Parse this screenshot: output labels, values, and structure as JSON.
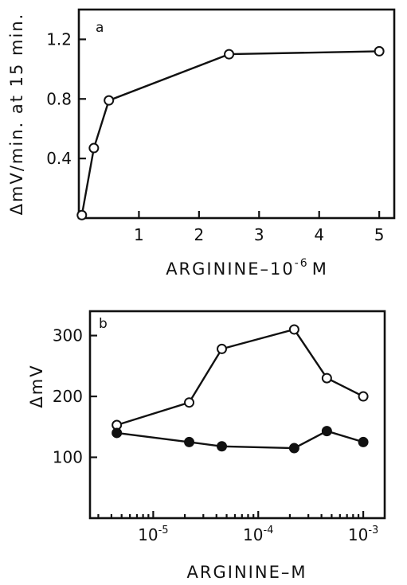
{
  "chart_data": [
    {
      "panel": "a",
      "type": "line",
      "xlabel": "ARGININE–10",
      "xlabel_exponent": "-6",
      "xlabel_unit": "M",
      "ylabel": "ΔmV/min. at 15 min.",
      "xlim": [
        0,
        5.25
      ],
      "ylim": [
        0,
        1.4
      ],
      "xticks": [
        1,
        2,
        3,
        4,
        5
      ],
      "xtick_labels": [
        "1",
        "2",
        "3",
        "4",
        "5"
      ],
      "yticks": [
        0.4,
        0.8,
        1.2
      ],
      "ytick_labels": [
        "0.4",
        "0.8",
        "1.2"
      ],
      "grid": false,
      "series": [
        {
          "marker": "open-circle",
          "x": [
            0.05,
            0.25,
            0.5,
            2.5,
            5.0
          ],
          "y": [
            0.02,
            0.47,
            0.79,
            1.1,
            1.12
          ]
        }
      ]
    },
    {
      "panel": "b",
      "type": "line",
      "xscale": "log",
      "xlabel": "ARGININE–M",
      "ylabel": "ΔmV",
      "xlim": [
        2.5e-06,
        0.0016
      ],
      "ylim": [
        0,
        340
      ],
      "xticks": [
        1e-05,
        0.0001,
        0.001
      ],
      "xtick_labels": [
        {
          "base": "10",
          "exp": "-5"
        },
        {
          "base": "10",
          "exp": "-4"
        },
        {
          "base": "10",
          "exp": "-3"
        }
      ],
      "yticks": [
        100,
        200,
        300
      ],
      "ytick_labels": [
        "100",
        "200",
        "300"
      ],
      "grid": false,
      "series": [
        {
          "marker": "open-circle",
          "x": [
            4.5e-06,
            2.2e-05,
            4.5e-05,
            0.00022,
            0.00045,
            0.001
          ],
          "y": [
            153,
            190,
            278,
            310,
            230,
            200
          ]
        },
        {
          "marker": "filled-circle",
          "x": [
            4.5e-06,
            2.2e-05,
            4.5e-05,
            0.00022,
            0.00045,
            0.001
          ],
          "y": [
            140,
            125,
            118,
            115,
            143,
            125
          ]
        }
      ]
    }
  ]
}
